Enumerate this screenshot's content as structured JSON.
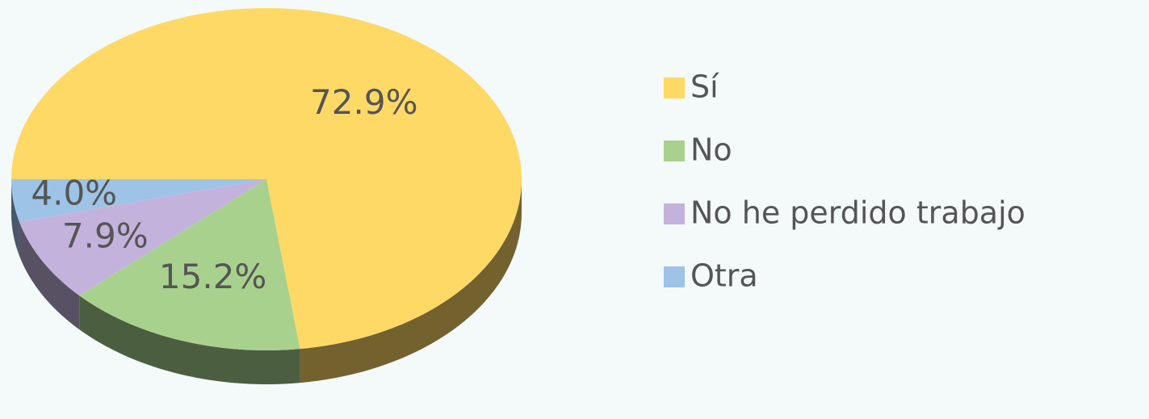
{
  "chart_data": {
    "type": "pie",
    "categories": [
      "Sí",
      "No",
      "No he perdido trabajo",
      "Otra"
    ],
    "values": [
      72.9,
      15.2,
      7.9,
      4.0
    ],
    "value_labels": [
      "72.9%",
      "15.2%",
      "7.9%",
      "4.0%"
    ],
    "colors": [
      "#ffd966",
      "#a9d18e",
      "#c3b3dc",
      "#9dc3e6"
    ],
    "legend": "right"
  }
}
